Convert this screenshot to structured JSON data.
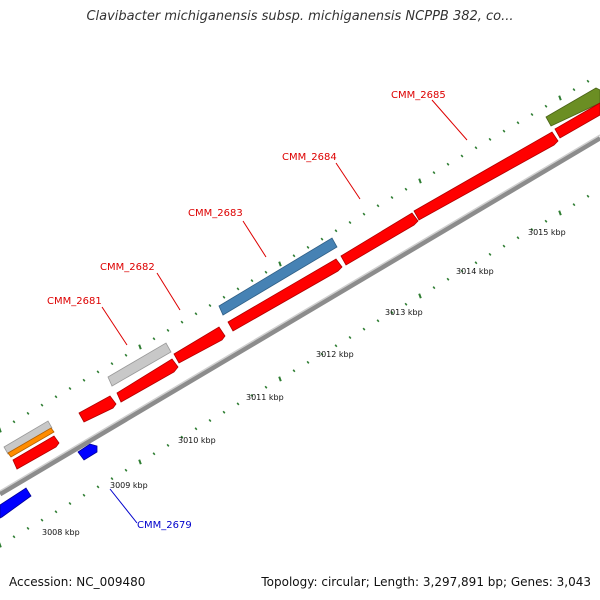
{
  "title": "Clavibacter michiganensis subsp. michiganensis NCPPB 382, co...",
  "accession": "Accession: NC_009480",
  "topology": "Topology: circular; Length: 3,297,891 bp; Genes: 3,043",
  "colors": {
    "cds_forward": "#ff0000",
    "cds_reverse": "#0000ff",
    "highlight_blue": "#4682b4",
    "grey": "#c8c8c8",
    "orange": "#ff8c00",
    "olive": "#6b8e23",
    "backbone": "#909090",
    "tick": "#2e7d32",
    "label_red": "#dd0000",
    "label_blue": "#0000cc"
  },
  "scale_labels": [
    "3008 kbp",
    "3009 kbp",
    "3010 kbp",
    "3011 kbp",
    "3012 kbp",
    "3013 kbp",
    "3014 kbp",
    "3015 kbp"
  ],
  "gene_labels": [
    {
      "text": "CMM_2685",
      "color": "red"
    },
    {
      "text": "CMM_2684",
      "color": "red"
    },
    {
      "text": "CMM_2683",
      "color": "red"
    },
    {
      "text": "CMM_2682",
      "color": "red"
    },
    {
      "text": "CMM_2681",
      "color": "red"
    },
    {
      "text": "CMM_2679",
      "color": "blue"
    }
  ]
}
